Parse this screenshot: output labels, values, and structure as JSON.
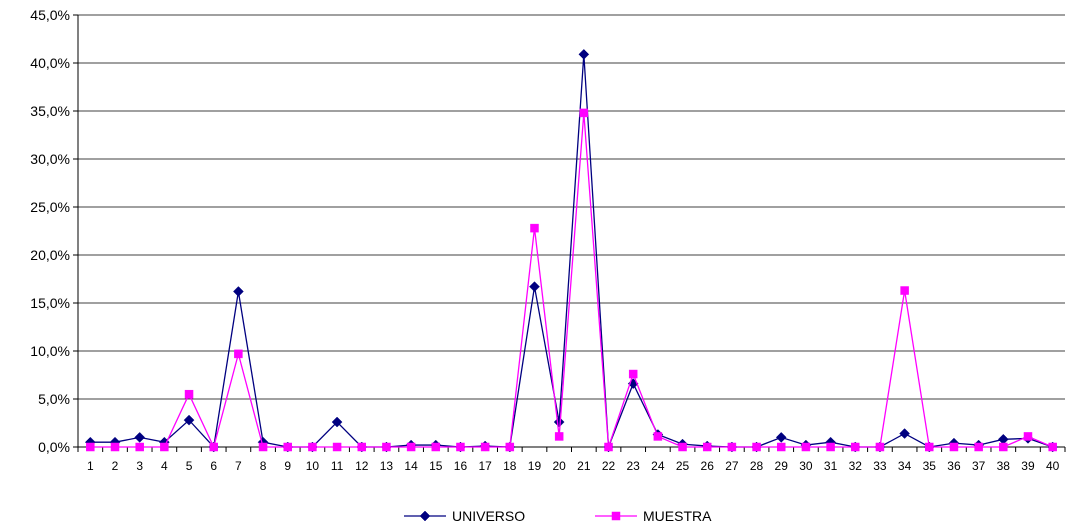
{
  "chart_data": {
    "type": "line",
    "title": "",
    "xlabel": "",
    "ylabel": "",
    "categories": [
      "1",
      "2",
      "3",
      "4",
      "5",
      "6",
      "7",
      "8",
      "9",
      "10",
      "11",
      "12",
      "13",
      "14",
      "15",
      "16",
      "17",
      "18",
      "19",
      "20",
      "21",
      "22",
      "23",
      "24",
      "25",
      "26",
      "27",
      "28",
      "29",
      "30",
      "31",
      "32",
      "33",
      "34",
      "35",
      "36",
      "37",
      "38",
      "39",
      "40"
    ],
    "ylim": [
      0,
      45
    ],
    "yticks": [
      0,
      5,
      10,
      15,
      20,
      25,
      30,
      35,
      40,
      45
    ],
    "ytick_labels": [
      "0,0%",
      "5,0%",
      "10,0%",
      "15,0%",
      "20,0%",
      "25,0%",
      "30,0%",
      "35,0%",
      "40,0%",
      "45,0%"
    ],
    "grid": "horizontal",
    "legend_position": "bottom",
    "series": [
      {
        "name": "UNIVERSO",
        "color": "#000080",
        "marker": "diamond",
        "values": [
          0.5,
          0.5,
          1.0,
          0.5,
          2.8,
          0.0,
          16.2,
          0.5,
          0.0,
          0.0,
          2.6,
          0.0,
          0.0,
          0.2,
          0.2,
          0.0,
          0.1,
          0.0,
          16.7,
          2.6,
          40.9,
          0.0,
          6.6,
          1.3,
          0.3,
          0.1,
          0.0,
          0.0,
          1.0,
          0.2,
          0.5,
          0.0,
          0.0,
          1.4,
          0.0,
          0.4,
          0.2,
          0.8,
          0.9,
          0.0
        ]
      },
      {
        "name": "MUESTRA",
        "color": "#FF00FF",
        "marker": "square",
        "values": [
          0.0,
          0.0,
          0.0,
          0.0,
          5.5,
          0.0,
          9.7,
          0.0,
          0.0,
          0.0,
          0.0,
          0.0,
          0.0,
          0.0,
          0.0,
          0.0,
          0.0,
          0.0,
          22.8,
          1.1,
          34.8,
          0.0,
          7.6,
          1.1,
          0.0,
          0.0,
          0.0,
          0.0,
          0.0,
          0.0,
          0.0,
          0.0,
          0.0,
          16.3,
          0.0,
          0.0,
          0.0,
          0.0,
          1.1,
          0.0
        ]
      }
    ]
  }
}
